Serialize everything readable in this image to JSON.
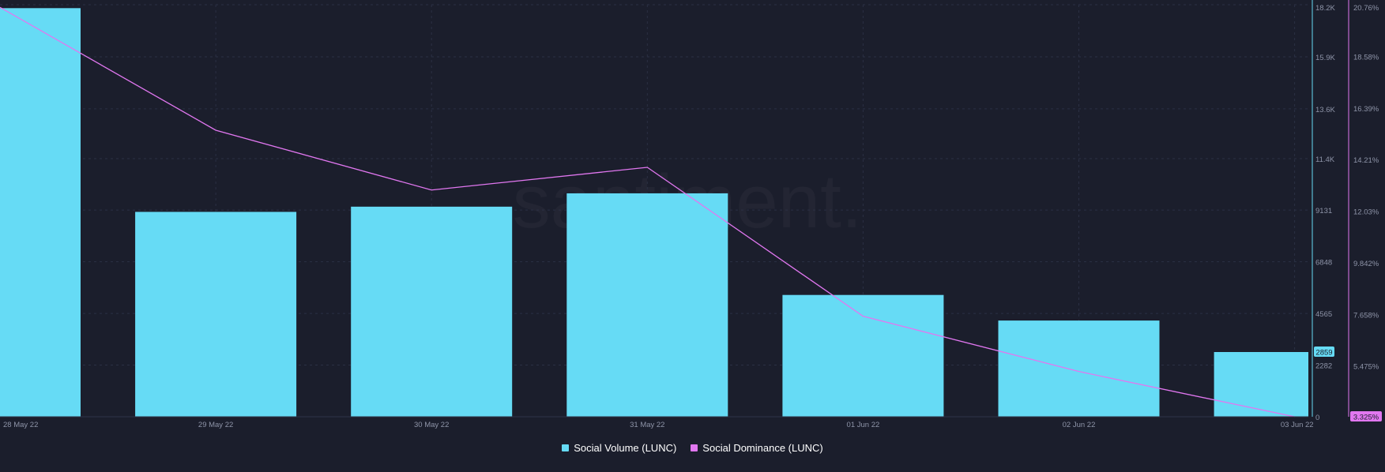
{
  "colors": {
    "background": "#1b1e2c",
    "volume": "#66dbf5",
    "dominance": "#e177f0",
    "grid": "#2b3044",
    "tick_text": "#8e94a8"
  },
  "watermark": "santiment.",
  "chart_data": {
    "type": "bar",
    "grid": true,
    "categories": [
      "28 May 22",
      "29 May 22",
      "30 May 22",
      "31 May 22",
      "01 Jun 22",
      "02 Jun 22",
      "03 Jun 22"
    ],
    "series": [
      {
        "name": "Social Volume (LUNC)",
        "type": "bar",
        "axis": "left",
        "values": [
          18050,
          9050,
          9280,
          9870,
          5380,
          4250,
          2859
        ]
      },
      {
        "name": "Social Dominance (LUNC)",
        "type": "line",
        "axis": "right",
        "unit": "%",
        "values": [
          20.65,
          15.45,
          12.92,
          13.88,
          7.58,
          5.24,
          3.325
        ]
      }
    ],
    "y_left": {
      "ylim": [
        0,
        18200
      ],
      "ticks": [
        0,
        2282,
        4565,
        6848,
        9131,
        11400,
        13600,
        15900,
        18200
      ],
      "tick_labels": [
        "0",
        "2282",
        "4565",
        "6848",
        "9131",
        "11.4K",
        "13.6K",
        "15.9K",
        "18.2K"
      ]
    },
    "y_right": {
      "ylim": [
        3.325,
        20.76
      ],
      "ticks": [
        5.475,
        7.658,
        9.842,
        12.03,
        14.21,
        16.39,
        18.58,
        20.76
      ],
      "tick_labels": [
        "5.475%",
        "7.658%",
        "9.842%",
        "12.03%",
        "14.21%",
        "16.39%",
        "18.58%",
        "20.76%"
      ]
    },
    "current_value_badges": {
      "left": "2859",
      "right": "3.325%"
    }
  }
}
